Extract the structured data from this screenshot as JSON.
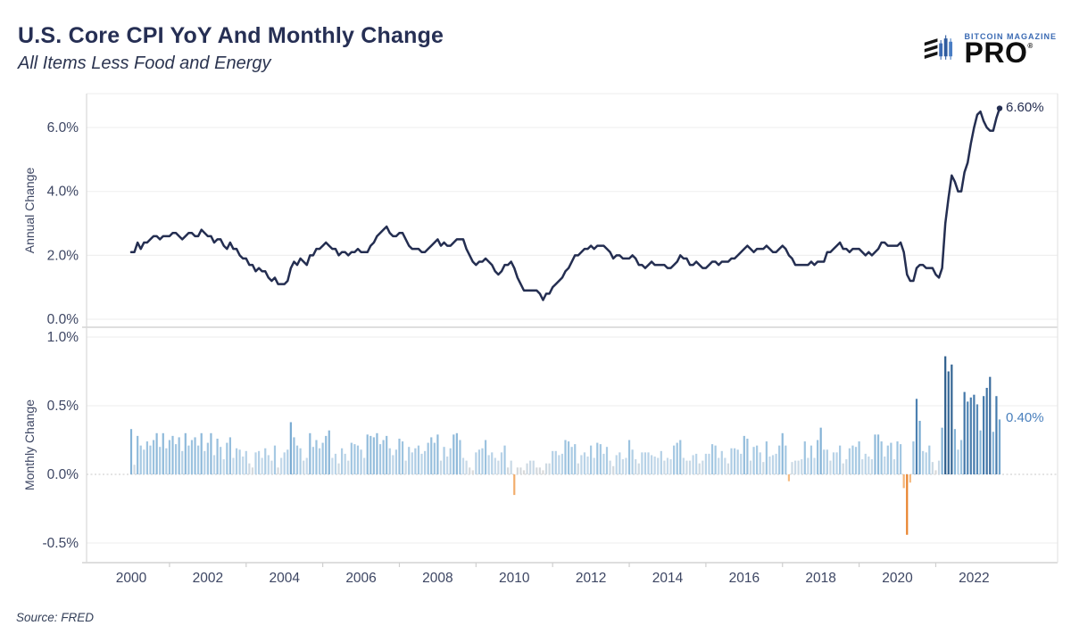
{
  "header": {
    "title": "U.S. Core CPI YoY And Monthly Change",
    "subtitle": "All Items Less Food and Energy"
  },
  "logo": {
    "brand": "BITCOIN MAGAZINE",
    "product": "PRO",
    "registered": "®"
  },
  "footer": {
    "source": "Source: FRED"
  },
  "colors": {
    "line": "#242e51",
    "axis_text": "#3d4663",
    "grid": "#f0f0f0",
    "zero_line": "#c9c9c9",
    "panel_border": "#d4d4d4",
    "axis_line": "#d9d9d9",
    "right_border": "#e4e4e4",
    "top_border": "#ececec",
    "annotation_yoy": "#242e51",
    "annotation_mom": "#4a80bd",
    "brand_blue": "#3a6ab3",
    "bar_stops": [
      {
        "v": -0.45,
        "c": "#e8812a"
      },
      {
        "v": -0.04,
        "c": "#f6bd84"
      },
      {
        "v": 0.03,
        "c": "#d9d9d9"
      },
      {
        "v": 0.12,
        "c": "#c4d9ea"
      },
      {
        "v": 0.22,
        "c": "#a3c7e2"
      },
      {
        "v": 0.38,
        "c": "#79abd2"
      },
      {
        "v": 0.58,
        "c": "#4479ab"
      },
      {
        "v": 0.9,
        "c": "#2b5a88"
      }
    ]
  },
  "chart_data": {
    "type": "combo",
    "title": "U.S. Core CPI YoY And Monthly Change",
    "subtitle": "All Items Less Food and Energy",
    "x": {
      "start_year": 2000,
      "months": 273,
      "tick_years": [
        2000,
        2002,
        2004,
        2006,
        2008,
        2010,
        2012,
        2014,
        2016,
        2018,
        2020,
        2022
      ],
      "minor_tick_years": [
        2001,
        2003,
        2005,
        2007,
        2009,
        2011,
        2013,
        2015,
        2017,
        2019,
        2021
      ]
    },
    "panel_top": {
      "type": "line",
      "ylabel": "Annual Change",
      "ylim": [
        -0.1,
        7.05
      ],
      "grid": true,
      "ticks": [
        {
          "v": 0.0,
          "label": "0.0%"
        },
        {
          "v": 2.0,
          "label": "2.0%"
        },
        {
          "v": 4.0,
          "label": "4.0%"
        },
        {
          "v": 6.0,
          "label": "6.0%"
        }
      ]
    },
    "panel_bottom": {
      "type": "bar",
      "ylabel": "Monthly Change",
      "ylim": [
        -0.65,
        1.07
      ],
      "grid": true,
      "ticks": [
        {
          "v": 1.0,
          "label": "1.0%"
        },
        {
          "v": 0.5,
          "label": "0.5%"
        },
        {
          "v": 0.0,
          "label": "0.0%"
        },
        {
          "v": -0.5,
          "label": "-0.5%"
        }
      ]
    },
    "yoy": [
      2.1,
      2.1,
      2.4,
      2.2,
      2.4,
      2.4,
      2.5,
      2.6,
      2.6,
      2.5,
      2.6,
      2.6,
      2.6,
      2.7,
      2.7,
      2.6,
      2.5,
      2.6,
      2.7,
      2.7,
      2.6,
      2.6,
      2.8,
      2.7,
      2.6,
      2.6,
      2.4,
      2.5,
      2.5,
      2.3,
      2.2,
      2.4,
      2.2,
      2.2,
      2.0,
      1.9,
      1.9,
      1.7,
      1.7,
      1.5,
      1.6,
      1.5,
      1.5,
      1.3,
      1.2,
      1.3,
      1.1,
      1.1,
      1.1,
      1.2,
      1.6,
      1.8,
      1.7,
      1.9,
      1.8,
      1.7,
      2.0,
      2.0,
      2.2,
      2.2,
      2.3,
      2.4,
      2.3,
      2.2,
      2.2,
      2.0,
      2.1,
      2.1,
      2.0,
      2.1,
      2.1,
      2.2,
      2.1,
      2.1,
      2.1,
      2.3,
      2.4,
      2.6,
      2.7,
      2.8,
      2.9,
      2.7,
      2.6,
      2.6,
      2.7,
      2.7,
      2.5,
      2.3,
      2.2,
      2.2,
      2.2,
      2.1,
      2.1,
      2.2,
      2.3,
      2.4,
      2.5,
      2.3,
      2.4,
      2.3,
      2.3,
      2.4,
      2.5,
      2.5,
      2.5,
      2.2,
      2.0,
      1.8,
      1.7,
      1.8,
      1.8,
      1.9,
      1.8,
      1.7,
      1.5,
      1.4,
      1.5,
      1.7,
      1.7,
      1.8,
      1.6,
      1.3,
      1.1,
      0.9,
      0.9,
      0.9,
      0.9,
      0.9,
      0.8,
      0.6,
      0.8,
      0.8,
      1.0,
      1.1,
      1.2,
      1.3,
      1.5,
      1.6,
      1.8,
      2.0,
      2.0,
      2.1,
      2.2,
      2.2,
      2.3,
      2.2,
      2.3,
      2.3,
      2.3,
      2.2,
      2.1,
      1.9,
      2.0,
      2.0,
      1.9,
      1.9,
      1.9,
      2.0,
      1.9,
      1.7,
      1.7,
      1.6,
      1.7,
      1.8,
      1.7,
      1.7,
      1.7,
      1.7,
      1.6,
      1.6,
      1.7,
      1.8,
      2.0,
      1.9,
      1.9,
      1.7,
      1.7,
      1.8,
      1.7,
      1.6,
      1.6,
      1.7,
      1.8,
      1.8,
      1.7,
      1.8,
      1.8,
      1.8,
      1.9,
      1.9,
      2.0,
      2.1,
      2.2,
      2.3,
      2.2,
      2.1,
      2.2,
      2.2,
      2.2,
      2.3,
      2.2,
      2.1,
      2.1,
      2.2,
      2.3,
      2.2,
      2.0,
      1.9,
      1.7,
      1.7,
      1.7,
      1.7,
      1.7,
      1.8,
      1.7,
      1.8,
      1.8,
      1.8,
      2.1,
      2.1,
      2.2,
      2.3,
      2.4,
      2.2,
      2.2,
      2.1,
      2.2,
      2.2,
      2.2,
      2.1,
      2.0,
      2.1,
      2.0,
      2.1,
      2.2,
      2.4,
      2.4,
      2.3,
      2.3,
      2.3,
      2.3,
      2.4,
      2.1,
      1.4,
      1.2,
      1.2,
      1.6,
      1.7,
      1.7,
      1.6,
      1.6,
      1.6,
      1.4,
      1.3,
      1.6,
      3.0,
      3.8,
      4.5,
      4.3,
      4.0,
      4.0,
      4.6,
      4.9,
      5.5,
      6.0,
      6.4,
      6.5,
      6.2,
      6.0,
      5.9,
      5.9,
      6.3,
      6.6
    ],
    "mom": [
      0.33,
      0.07,
      0.28,
      0.21,
      0.18,
      0.24,
      0.21,
      0.25,
      0.3,
      0.2,
      0.3,
      0.19,
      0.25,
      0.28,
      0.22,
      0.27,
      0.17,
      0.3,
      0.21,
      0.25,
      0.27,
      0.21,
      0.3,
      0.17,
      0.23,
      0.3,
      0.14,
      0.26,
      0.2,
      0.11,
      0.23,
      0.27,
      0.12,
      0.19,
      0.18,
      0.13,
      0.17,
      0.08,
      0.05,
      0.16,
      0.17,
      0.12,
      0.19,
      0.14,
      0.1,
      0.21,
      0.05,
      0.12,
      0.16,
      0.18,
      0.38,
      0.27,
      0.21,
      0.19,
      0.1,
      0.12,
      0.3,
      0.2,
      0.25,
      0.19,
      0.23,
      0.28,
      0.32,
      0.12,
      0.15,
      0.08,
      0.19,
      0.15,
      0.1,
      0.23,
      0.22,
      0.21,
      0.18,
      0.12,
      0.29,
      0.28,
      0.27,
      0.3,
      0.22,
      0.25,
      0.28,
      0.19,
      0.14,
      0.18,
      0.26,
      0.24,
      0.1,
      0.2,
      0.16,
      0.19,
      0.21,
      0.15,
      0.17,
      0.23,
      0.27,
      0.23,
      0.29,
      0.1,
      0.2,
      0.13,
      0.19,
      0.29,
      0.3,
      0.25,
      0.12,
      0.1,
      0.05,
      0.03,
      0.16,
      0.18,
      0.19,
      0.25,
      0.14,
      0.16,
      0.12,
      0.1,
      0.16,
      0.21,
      0.05,
      0.1,
      -0.15,
      0.05,
      0.05,
      0.03,
      0.08,
      0.1,
      0.1,
      0.05,
      0.05,
      0.03,
      0.08,
      0.08,
      0.17,
      0.17,
      0.14,
      0.15,
      0.25,
      0.24,
      0.2,
      0.22,
      0.08,
      0.14,
      0.16,
      0.13,
      0.21,
      0.12,
      0.23,
      0.22,
      0.15,
      0.2,
      0.1,
      0.06,
      0.14,
      0.16,
      0.11,
      0.12,
      0.25,
      0.18,
      0.11,
      0.08,
      0.16,
      0.16,
      0.16,
      0.14,
      0.13,
      0.12,
      0.17,
      0.1,
      0.12,
      0.11,
      0.21,
      0.23,
      0.25,
      0.12,
      0.1,
      0.1,
      0.14,
      0.15,
      0.08,
      0.1,
      0.15,
      0.15,
      0.22,
      0.21,
      0.12,
      0.17,
      0.12,
      0.08,
      0.19,
      0.19,
      0.18,
      0.15,
      0.28,
      0.26,
      0.1,
      0.2,
      0.21,
      0.16,
      0.09,
      0.24,
      0.13,
      0.14,
      0.15,
      0.21,
      0.3,
      0.21,
      -0.05,
      0.09,
      0.1,
      0.1,
      0.11,
      0.24,
      0.12,
      0.21,
      0.12,
      0.25,
      0.34,
      0.18,
      0.18,
      0.1,
      0.16,
      0.16,
      0.21,
      0.08,
      0.11,
      0.19,
      0.21,
      0.2,
      0.24,
      0.11,
      0.15,
      0.13,
      0.11,
      0.29,
      0.29,
      0.24,
      0.13,
      0.21,
      0.23,
      0.11,
      0.24,
      0.22,
      -0.1,
      -0.44,
      -0.06,
      0.24,
      0.55,
      0.39,
      0.17,
      0.16,
      0.21,
      0.09,
      0.03,
      0.1,
      0.34,
      0.86,
      0.75,
      0.8,
      0.33,
      0.18,
      0.25,
      0.6,
      0.53,
      0.56,
      0.58,
      0.51,
      0.32,
      0.57,
      0.63,
      0.71,
      0.31,
      0.57,
      0.4
    ],
    "annotations": {
      "yoy_last": "6.60%",
      "mom_last": "0.40%"
    }
  }
}
